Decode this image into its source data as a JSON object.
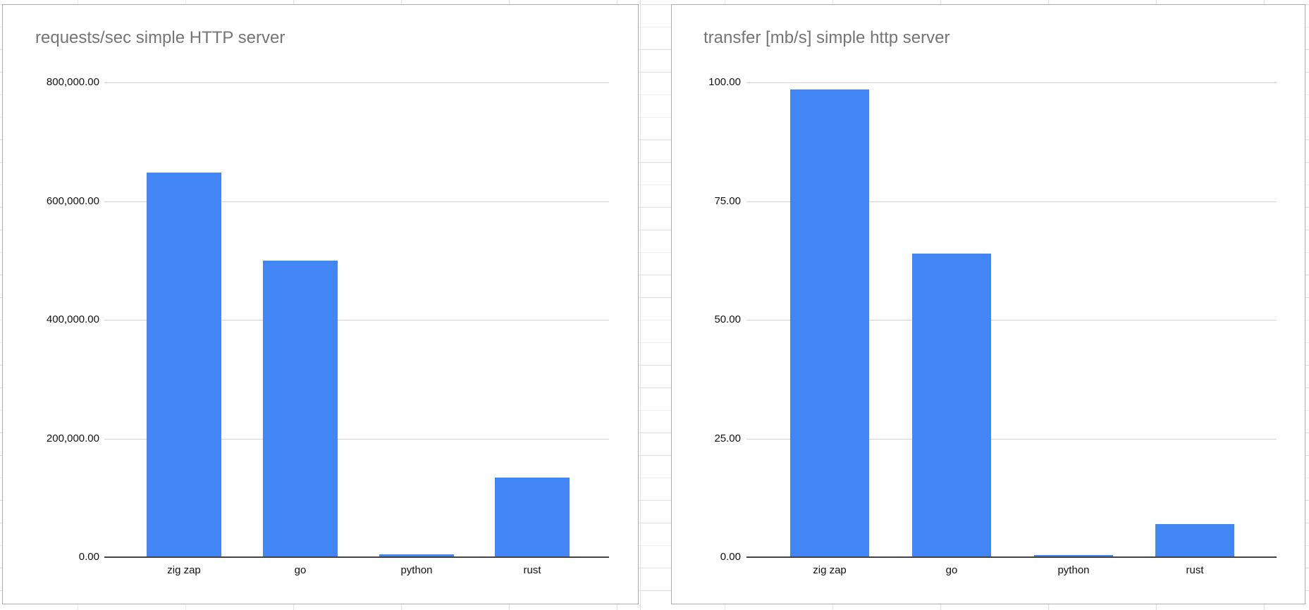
{
  "colors": {
    "bar": "#4285f4",
    "title_text": "#757575",
    "axis_text": "#111111",
    "axis_line": "#424242",
    "chart_gridline": "#d3d3d3",
    "sheet_gridline": "#e1e1e1",
    "chart_border": "#adadad"
  },
  "chart_data": [
    {
      "type": "bar",
      "title": "requests/sec simple HTTP server",
      "categories": [
        "zig zap",
        "go",
        "python",
        "rust"
      ],
      "values": [
        648000,
        500000,
        4200,
        134000
      ],
      "xlabel": "",
      "ylabel": "",
      "ylim": [
        0,
        800000
      ],
      "ytick_labels": [
        "800,000.00",
        "600,000.00",
        "400,000.00",
        "200,000.00",
        "0.00"
      ],
      "ytick_values": [
        800000,
        600000,
        400000,
        200000,
        0
      ],
      "grid": true,
      "legend": "none",
      "bar_color": "#4285f4"
    },
    {
      "type": "bar",
      "title": "transfer [mb/s] simple http server",
      "categories": [
        "zig zap",
        "go",
        "python",
        "rust"
      ],
      "values": [
        98.5,
        64.0,
        0.5,
        7.0
      ],
      "xlabel": "",
      "ylabel": "",
      "ylim": [
        0,
        100
      ],
      "ytick_labels": [
        "100.00",
        "75.00",
        "50.00",
        "25.00",
        "0.00"
      ],
      "ytick_values": [
        100,
        75,
        50,
        25,
        0
      ],
      "grid": true,
      "legend": "none",
      "bar_color": "#4285f4"
    }
  ]
}
